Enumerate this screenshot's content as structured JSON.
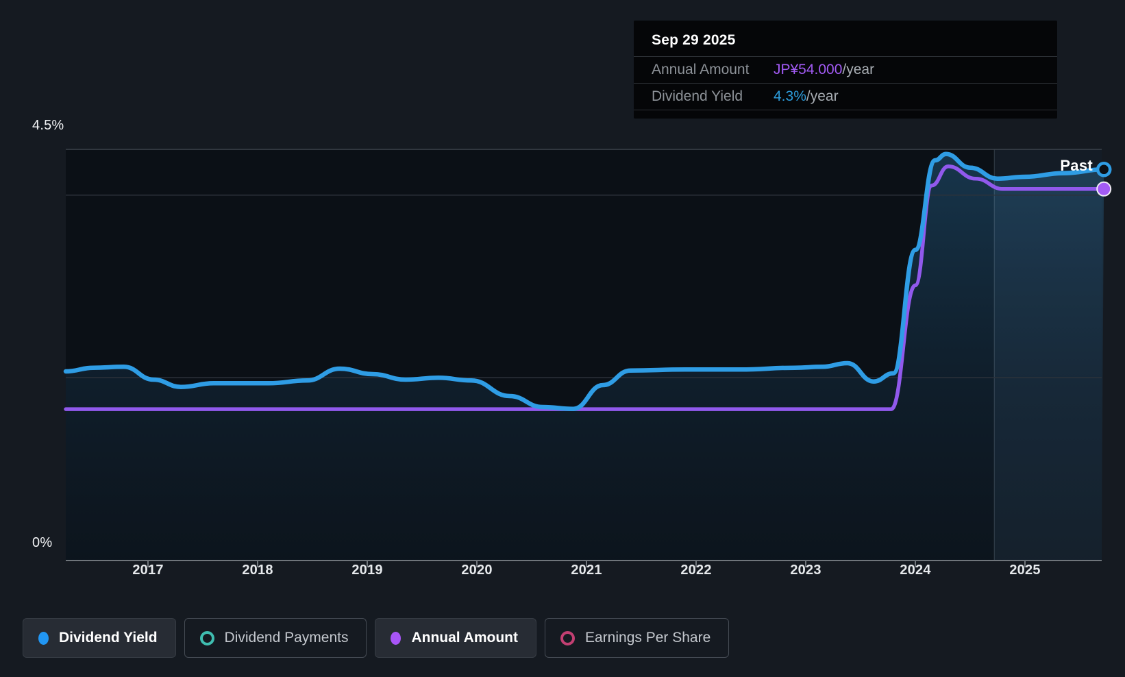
{
  "tooltip": {
    "date": "Sep 29 2025",
    "rows": [
      {
        "label": "Annual Amount",
        "value": "JP¥54.000",
        "suffix": "/year",
        "value_color": "#a35bf5"
      },
      {
        "label": "Dividend Yield",
        "value": "4.3%",
        "suffix": "/year",
        "value_color": "#2d9cdb"
      }
    ]
  },
  "axes": {
    "y_top_label": "4.5%",
    "y_bottom_label": "0%",
    "years": [
      "2017",
      "2018",
      "2019",
      "2020",
      "2021",
      "2022",
      "2023",
      "2024",
      "2025"
    ]
  },
  "annotations": {
    "past_label": "Past"
  },
  "legend": [
    {
      "label": "Dividend Yield",
      "active": true,
      "icon": "filled-dot-icon",
      "color": "#2196f3"
    },
    {
      "label": "Dividend Payments",
      "active": false,
      "icon": "ring-icon",
      "color": "#3fbdb0"
    },
    {
      "label": "Annual Amount",
      "active": true,
      "icon": "filled-dot-icon",
      "color": "#a855f7"
    },
    {
      "label": "Earnings Per Share",
      "active": false,
      "icon": "ring-icon",
      "color": "#c23f72"
    }
  ],
  "colors": {
    "yield_line": "#2f9de5",
    "amount_line": "#9159ec",
    "amount_marker": "#a35bf5",
    "tooltip_amount_value": "#a35bf5",
    "tooltip_yield_value": "#2d9cdb",
    "page_background": "#151a21",
    "plot_background": "#0b1016",
    "tooltip_background": "#050608"
  },
  "chart_data": {
    "type": "line",
    "title": "Dividend history: yield and annual dividend amount over time",
    "x_range": [
      2016.25,
      2025.75
    ],
    "grid_on": true,
    "legend_position": "bottom-left",
    "y_left": {
      "unit": "%",
      "min": 0,
      "max": 4.5,
      "gridlines_pct": [
        4.5,
        4.0,
        2.0
      ],
      "labeled_ticks": [
        "4.5%",
        "0%"
      ]
    },
    "highlight_band": {
      "from_year": 2024.72,
      "to_year": 2025.75,
      "meaning": "most recent period (Past)"
    },
    "end_values": {
      "dividend_yield": "4.3%/year",
      "annual_amount": "JP¥54.000/year",
      "as_of": "Sep 29 2025"
    },
    "series": [
      {
        "name": "Dividend Yield",
        "unit": "percent",
        "style": "line-with-area",
        "points": [
          [
            2016.25,
            2.07
          ],
          [
            2016.5,
            2.11
          ],
          [
            2016.78,
            2.12
          ],
          [
            2017.05,
            1.98
          ],
          [
            2017.3,
            1.9
          ],
          [
            2017.6,
            1.94
          ],
          [
            2018.1,
            1.94
          ],
          [
            2018.45,
            1.97
          ],
          [
            2018.75,
            2.1
          ],
          [
            2019.05,
            2.04
          ],
          [
            2019.35,
            1.98
          ],
          [
            2019.65,
            2.0
          ],
          [
            2019.95,
            1.97
          ],
          [
            2020.3,
            1.8
          ],
          [
            2020.6,
            1.68
          ],
          [
            2020.88,
            1.66
          ],
          [
            2021.15,
            1.92
          ],
          [
            2021.4,
            2.08
          ],
          [
            2021.9,
            2.09
          ],
          [
            2022.4,
            2.09
          ],
          [
            2022.9,
            2.11
          ],
          [
            2023.15,
            2.12
          ],
          [
            2023.38,
            2.16
          ],
          [
            2023.62,
            1.96
          ],
          [
            2023.8,
            2.05
          ],
          [
            2024.0,
            3.4
          ],
          [
            2024.18,
            4.38
          ],
          [
            2024.28,
            4.45
          ],
          [
            2024.5,
            4.3
          ],
          [
            2024.75,
            4.18
          ],
          [
            2025.0,
            4.2
          ],
          [
            2025.35,
            4.24
          ],
          [
            2025.72,
            4.28
          ]
        ]
      },
      {
        "name": "Annual Amount",
        "unit": "JPY_per_year",
        "style": "line",
        "points": [
          [
            2016.25,
            22
          ],
          [
            2017.5,
            22
          ],
          [
            2019.0,
            22
          ],
          [
            2020.5,
            22
          ],
          [
            2022.0,
            22
          ],
          [
            2023.2,
            22
          ],
          [
            2023.78,
            22
          ],
          [
            2024.0,
            40
          ],
          [
            2024.15,
            54.5
          ],
          [
            2024.3,
            57.3
          ],
          [
            2024.55,
            55.5
          ],
          [
            2024.8,
            54
          ],
          [
            2025.2,
            54
          ],
          [
            2025.72,
            54
          ]
        ]
      }
    ]
  }
}
